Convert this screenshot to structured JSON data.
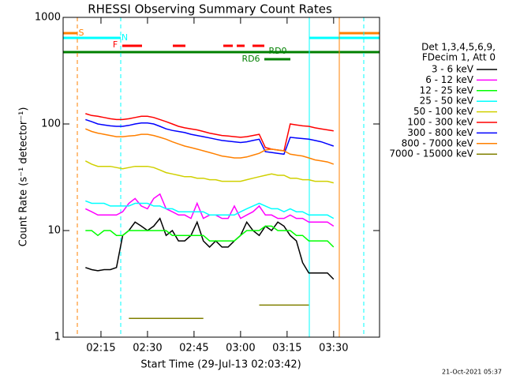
{
  "chart_data": {
    "type": "line",
    "title": "RHESSI Observing Summary Count Rates",
    "xlabel": "Start Time (29-Jul-13 02:03:42)",
    "ylabel": "Count Rate (s⁻¹ detector⁻¹)",
    "legend_header": [
      "Det 1,3,4,5,6,9,",
      "FDecim 1, Att 0"
    ],
    "annotations": [
      "S",
      "N",
      "F",
      "RD0",
      "RD6"
    ],
    "footer": "21-Oct-2021 05:37",
    "log_y": true,
    "xlim": [
      2.8,
      104.8
    ],
    "ylim": [
      1,
      1000
    ],
    "xticks": [
      {
        "value": 15,
        "label": "02:15"
      },
      {
        "value": 30,
        "label": "02:30"
      },
      {
        "value": 45,
        "label": "02:45"
      },
      {
        "value": 60,
        "label": "03:00"
      },
      {
        "value": 75,
        "label": "03:15"
      },
      {
        "value": 90,
        "label": "03:30"
      }
    ],
    "yticks": [
      1,
      10,
      100,
      1000
    ],
    "x": [
      10,
      12,
      14,
      16,
      18,
      20,
      22,
      24,
      26,
      28,
      30,
      32,
      34,
      36,
      38,
      40,
      42,
      44,
      46,
      48,
      50,
      52,
      54,
      56,
      58,
      60,
      62,
      64,
      66,
      68,
      70,
      72,
      74,
      76,
      78,
      80,
      82,
      84,
      86,
      88,
      90
    ],
    "series": [
      {
        "name": "3 - 6 keV",
        "color": "#000000",
        "values": [
          4.5,
          4.3,
          4.2,
          4.3,
          4.3,
          4.5,
          9,
          10,
          12,
          11,
          10,
          11,
          13,
          9,
          10,
          8,
          8,
          9,
          12,
          8,
          7,
          8,
          7,
          7,
          8,
          9,
          12,
          10,
          9,
          11,
          10,
          12,
          11,
          9,
          8,
          5,
          4,
          4,
          4,
          4,
          3.5
        ]
      },
      {
        "name": "6 - 12 keV",
        "color": "#ff00ff",
        "values": [
          16,
          15,
          14,
          14,
          14,
          14,
          15,
          18,
          20,
          17,
          16,
          20,
          22,
          16,
          15,
          14,
          14,
          13,
          18,
          13,
          14,
          14,
          13,
          13,
          17,
          13,
          14,
          15,
          17,
          14,
          14,
          13,
          13,
          14,
          13,
          13,
          12,
          12,
          12,
          12,
          11
        ]
      },
      {
        "name": "12 - 25 keV",
        "color": "#00ff00",
        "values": [
          10,
          10,
          9,
          10,
          10,
          9,
          9,
          10,
          10,
          10,
          10,
          10,
          10,
          10,
          9,
          9,
          9,
          9,
          9,
          9,
          8,
          8,
          8,
          8,
          8,
          9,
          10,
          10,
          10,
          11,
          11,
          10,
          10,
          10,
          9,
          9,
          8,
          8,
          8,
          8,
          7
        ]
      },
      {
        "name": "25 - 50 keV",
        "color": "#00ffff",
        "values": [
          19,
          18,
          18,
          18,
          17,
          17,
          17,
          17,
          18,
          18,
          18,
          17,
          17,
          16,
          16,
          15,
          15,
          15,
          15,
          15,
          14,
          14,
          14,
          14,
          14,
          15,
          16,
          17,
          18,
          17,
          16,
          16,
          15,
          16,
          15,
          15,
          14,
          14,
          14,
          14,
          13
        ]
      },
      {
        "name": "50 - 100 keV",
        "color": "#d0d000",
        "values": [
          45,
          42,
          40,
          40,
          40,
          39,
          38,
          39,
          40,
          40,
          40,
          39,
          37,
          35,
          34,
          33,
          32,
          32,
          31,
          31,
          30,
          30,
          29,
          29,
          29,
          29,
          30,
          31,
          32,
          33,
          34,
          33,
          33,
          31,
          31,
          30,
          30,
          29,
          29,
          29,
          28
        ]
      },
      {
        "name": "100 - 300 keV",
        "color": "#ff0000",
        "values": [
          125,
          120,
          118,
          115,
          112,
          110,
          110,
          112,
          115,
          118,
          118,
          115,
          110,
          105,
          100,
          95,
          92,
          90,
          88,
          85,
          82,
          80,
          78,
          77,
          76,
          75,
          76,
          78,
          80,
          60,
          58,
          57,
          56,
          100,
          98,
          96,
          95,
          92,
          90,
          88,
          86
        ]
      },
      {
        "name": "300 - 800 keV",
        "color": "#0000ff",
        "values": [
          110,
          105,
          100,
          98,
          96,
          95,
          95,
          97,
          100,
          102,
          102,
          100,
          95,
          90,
          87,
          85,
          83,
          80,
          78,
          76,
          74,
          72,
          70,
          69,
          68,
          67,
          68,
          70,
          72,
          55,
          54,
          53,
          52,
          75,
          74,
          73,
          72,
          70,
          68,
          65,
          62
        ]
      },
      {
        "name": "800 - 7000 keV",
        "color": "#ff8000",
        "values": [
          90,
          85,
          82,
          80,
          78,
          76,
          76,
          77,
          78,
          80,
          80,
          78,
          75,
          72,
          68,
          65,
          62,
          60,
          58,
          56,
          54,
          52,
          50,
          49,
          48,
          48,
          49,
          51,
          53,
          57,
          58,
          57,
          56,
          52,
          51,
          50,
          48,
          46,
          45,
          44,
          42
        ]
      },
      {
        "name": "7000 - 15000 keV",
        "color": "#808000",
        "values": [
          null,
          null,
          null,
          null,
          null,
          null,
          null,
          1.5,
          1.5,
          1.5,
          1.5,
          1.5,
          1.5,
          1.5,
          1.5,
          1.5,
          1.5,
          1.5,
          1.5,
          1.5,
          null,
          null,
          null,
          null,
          null,
          null,
          null,
          null,
          2,
          2,
          2,
          2,
          2,
          2,
          2,
          2,
          2,
          null,
          null,
          null,
          null
        ]
      }
    ]
  }
}
